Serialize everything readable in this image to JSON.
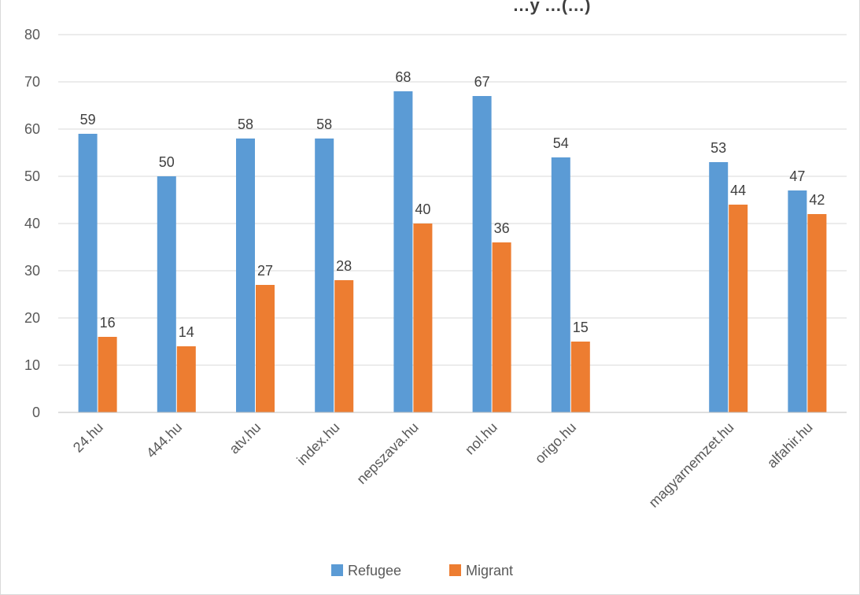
{
  "chart_data": {
    "type": "bar",
    "title": "…y …(…)",
    "categories": [
      "24.hu",
      "444.hu",
      "atv.hu",
      "index.hu",
      "nepszava.hu",
      "nol.hu",
      "origo.hu",
      "",
      "magyarnemzet.hu",
      "alfahir.hu"
    ],
    "series": [
      {
        "name": "Refugee",
        "color": "#5b9bd5",
        "values": [
          59,
          50,
          58,
          58,
          68,
          67,
          54,
          null,
          53,
          47
        ]
      },
      {
        "name": "Migrant",
        "color": "#ed7d31",
        "values": [
          16,
          14,
          27,
          28,
          40,
          36,
          15,
          null,
          44,
          42
        ]
      }
    ],
    "ylim": [
      0,
      80
    ],
    "yticks": [
      0,
      10,
      20,
      30,
      40,
      50,
      60,
      70,
      80
    ],
    "grid": true,
    "legend_position": "bottom",
    "xlabel": "",
    "ylabel": ""
  }
}
